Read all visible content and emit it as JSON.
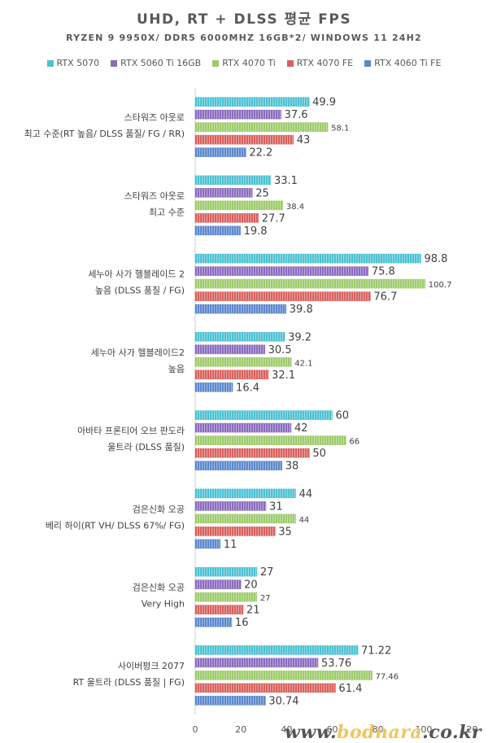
{
  "chart_data": {
    "type": "bar",
    "orientation": "horizontal",
    "title": "UHD, RT + DLSS 평균 FPS",
    "subtitle": "RYZEN 9 9950X/ DDR5 6000MHZ 16GB*2/ WINDOWS 11 24H2",
    "categories": [
      [
        "스타워즈 아웃로",
        "최고 수준(RT 높음/ DLSS 품질/ FG / RR)"
      ],
      [
        "스타워즈 아웃로",
        "최고 수준"
      ],
      [
        "세누아 사가 헬블레이드 2",
        "높음 (DLSS 품질 / FG)"
      ],
      [
        "세누아 사가 헬블레이드2",
        "높음"
      ],
      [
        "아바타 프론티어  오브 판도라",
        "울트라 (DLSS 품질)"
      ],
      [
        "검은신화 오공",
        "베리 하이(RT VH/ DLSS 67%/ FG)"
      ],
      [
        "검은신화 오공",
        "Very High"
      ],
      [
        "사이버펑크 2077",
        "RT 울트라 (DLSS 품질 | FG)"
      ]
    ],
    "series": [
      {
        "name": "RTX 5070",
        "color": "#4bc1d2",
        "values": [
          49.9,
          33.1,
          98.8,
          39.2,
          60,
          44,
          27,
          71.22
        ],
        "labels": [
          "49.9",
          "33.1",
          "98.8",
          "39.2",
          "60",
          "44",
          "27",
          "71.22"
        ]
      },
      {
        "name": "RTX 5060 Ti 16GB",
        "color": "#8a6bbf",
        "values": [
          37.6,
          25,
          75.8,
          30.5,
          42,
          31,
          20,
          53.76
        ],
        "labels": [
          "37.6",
          "25",
          "75.8",
          "30.5",
          "42",
          "31",
          "20",
          "53.76"
        ]
      },
      {
        "name": "RTX 4070 Ti",
        "color": "#9ccb6a",
        "values": [
          58.1,
          38.4,
          100.7,
          42.1,
          66,
          44,
          27,
          77.46
        ],
        "labels": [
          "58.1",
          "38.4",
          "100.7",
          "42.1",
          "66",
          "44",
          "27",
          "77.46"
        ]
      },
      {
        "name": "RTX 4070 FE",
        "color": "#d9605c",
        "values": [
          43,
          27.7,
          76.7,
          32.1,
          50,
          35,
          21,
          61.4
        ],
        "labels": [
          "43",
          "27.7",
          "76.7",
          "32.1",
          "50",
          "35",
          "21",
          "61.4"
        ]
      },
      {
        "name": "RTX 4060 Ti FE",
        "color": "#5b87cc",
        "values": [
          22.2,
          19.8,
          39.8,
          16.4,
          38,
          11,
          16,
          30.74
        ],
        "labels": [
          "22.2",
          "19.8",
          "39.8",
          "16.4",
          "38",
          "11",
          "16",
          "30.74"
        ]
      }
    ],
    "xlim": [
      0,
      120
    ],
    "xticks": [
      "0",
      "20",
      "40",
      "60",
      "80",
      "100",
      "120"
    ],
    "grid": false,
    "legend_position": "top"
  },
  "watermark": {
    "prefix": "www.",
    "accent": "bodnara",
    "suffix": ".co.kr"
  }
}
